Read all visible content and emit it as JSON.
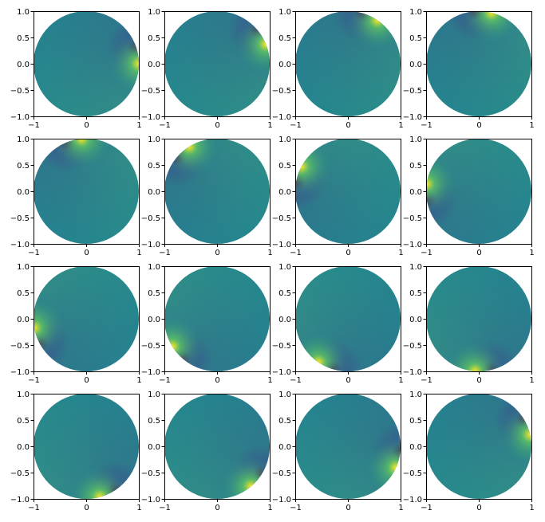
{
  "chart_data": {
    "type": "heatmap",
    "layout": {
      "rows": 4,
      "cols": 4
    },
    "colormap": "viridis",
    "colors": {
      "background": "#ffffff",
      "bulk": "#25858e",
      "dark": "#3b528b",
      "darkest": "#440154",
      "light": "#5ec962",
      "brightest": "#fde725"
    },
    "xlim": [
      -1,
      1
    ],
    "ylim": [
      -1,
      1
    ],
    "xticks": [
      -1,
      0,
      1
    ],
    "xtick_labels": [
      "−1",
      "0",
      "1"
    ],
    "yticks": [
      1.0,
      0.5,
      0.0,
      -0.5,
      -1.0
    ],
    "ytick_labels": [
      "1.0",
      "0.5",
      "0.0",
      "−0.5",
      "−1.0"
    ],
    "panels": [
      {
        "dipole_angle_deg": 0
      },
      {
        "dipole_angle_deg": 22
      },
      {
        "dipole_angle_deg": 56
      },
      {
        "dipole_angle_deg": 76
      },
      {
        "dipole_angle_deg": 95
      },
      {
        "dipole_angle_deg": 122
      },
      {
        "dipole_angle_deg": 152
      },
      {
        "dipole_angle_deg": 172
      },
      {
        "dipole_angle_deg": 190
      },
      {
        "dipole_angle_deg": 212
      },
      {
        "dipole_angle_deg": 236
      },
      {
        "dipole_angle_deg": 266
      },
      {
        "dipole_angle_deg": 285
      },
      {
        "dipole_angle_deg": 310
      },
      {
        "dipole_angle_deg": 336
      },
      {
        "dipole_angle_deg": 13
      }
    ]
  }
}
